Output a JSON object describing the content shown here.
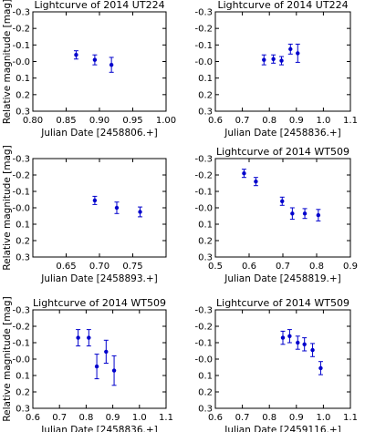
{
  "chart_data": [
    {
      "type": "scatter",
      "title": "Lightcurve of 2014 UT224",
      "xlabel": "Julian Date [2458806.+]",
      "ylabel": "Relative magnitude [mag]",
      "xlim": [
        0.8,
        1.0
      ],
      "ylim": [
        -0.3,
        0.3
      ],
      "y_inverted": true,
      "xticks": [
        0.8,
        0.85,
        0.9,
        0.95,
        1.0
      ],
      "xtick_labels": [
        "0.80",
        "0.85",
        "0.90",
        "0.95",
        "1.00"
      ],
      "yticks": [
        -0.3,
        -0.2,
        -0.1,
        0.0,
        0.1,
        0.2,
        0.3
      ],
      "ytick_labels": [
        "-0.3",
        "-0.2",
        "-0.1",
        "-0.0",
        "0.1",
        "0.2",
        "0.3"
      ],
      "color": "#0000cc",
      "points": [
        {
          "x": 0.865,
          "y": -0.04,
          "err": 0.025
        },
        {
          "x": 0.893,
          "y": -0.01,
          "err": 0.03
        },
        {
          "x": 0.918,
          "y": 0.02,
          "err": 0.045
        }
      ]
    },
    {
      "type": "scatter",
      "title": "Lightcurve of 2014 UT224",
      "xlabel": "Julian Date [2458836.+]",
      "ylabel": "",
      "xlim": [
        0.6,
        1.1
      ],
      "ylim": [
        -0.3,
        0.3
      ],
      "y_inverted": true,
      "xticks": [
        0.6,
        0.7,
        0.8,
        0.9,
        1.0,
        1.1
      ],
      "xtick_labels": [
        "0.6",
        "0.7",
        "0.8",
        "0.9",
        "1.0",
        "1.1"
      ],
      "yticks": [
        -0.3,
        -0.2,
        -0.1,
        0.0,
        0.1,
        0.2,
        0.3
      ],
      "ytick_labels": [
        "-0.3",
        "-0.2",
        "-0.1",
        "-0.0",
        "0.1",
        "0.2",
        "0.3"
      ],
      "color": "#0000cc",
      "points": [
        {
          "x": 0.78,
          "y": -0.01,
          "err": 0.03
        },
        {
          "x": 0.815,
          "y": -0.015,
          "err": 0.025
        },
        {
          "x": 0.845,
          "y": -0.005,
          "err": 0.025
        },
        {
          "x": 0.878,
          "y": -0.075,
          "err": 0.03
        },
        {
          "x": 0.905,
          "y": -0.05,
          "err": 0.055
        }
      ]
    },
    {
      "type": "scatter",
      "title": "",
      "xlabel": "Julian Date [2458893.+]",
      "ylabel": "Relative magnitude [mag]",
      "xlim": [
        0.6,
        0.8
      ],
      "ylim": [
        -0.3,
        0.3
      ],
      "y_inverted": true,
      "xticks": [
        0.65,
        0.7,
        0.75
      ],
      "xtick_labels": [
        "0.65",
        "0.70",
        "0.75"
      ],
      "yticks": [
        -0.3,
        -0.2,
        -0.1,
        0.0,
        0.1,
        0.2,
        0.3
      ],
      "ytick_labels": [
        "-0.3",
        "-0.2",
        "-0.1",
        "-0.0",
        "0.1",
        "0.2",
        "0.3"
      ],
      "color": "#0000cc",
      "points": [
        {
          "x": 0.693,
          "y": -0.045,
          "err": 0.025
        },
        {
          "x": 0.726,
          "y": 0.0,
          "err": 0.035
        },
        {
          "x": 0.761,
          "y": 0.025,
          "err": 0.03
        }
      ]
    },
    {
      "type": "scatter",
      "title": "Lightcurve of 2014 WT509",
      "xlabel": "Julian Date [2458819.+]",
      "ylabel": "",
      "xlim": [
        0.5,
        0.9
      ],
      "ylim": [
        -0.3,
        0.3
      ],
      "y_inverted": true,
      "xticks": [
        0.5,
        0.6,
        0.7,
        0.8,
        0.9
      ],
      "xtick_labels": [
        "0.5",
        "0.6",
        "0.7",
        "0.8",
        "0.9"
      ],
      "yticks": [
        -0.3,
        -0.2,
        -0.1,
        0.0,
        0.1,
        0.2,
        0.3
      ],
      "ytick_labels": [
        "-0.3",
        "-0.2",
        "-0.1",
        "-0.0",
        "0.1",
        "0.2",
        "0.3"
      ],
      "color": "#0000cc",
      "points": [
        {
          "x": 0.585,
          "y": -0.21,
          "err": 0.025
        },
        {
          "x": 0.62,
          "y": -0.16,
          "err": 0.025
        },
        {
          "x": 0.698,
          "y": -0.04,
          "err": 0.025
        },
        {
          "x": 0.728,
          "y": 0.035,
          "err": 0.035
        },
        {
          "x": 0.765,
          "y": 0.035,
          "err": 0.03
        },
        {
          "x": 0.805,
          "y": 0.045,
          "err": 0.035
        }
      ]
    },
    {
      "type": "scatter",
      "title": "Lightcurve of 2014 WT509",
      "xlabel": "Julian Date [2458836.+]",
      "ylabel": "Relative magnitude [mag]",
      "xlim": [
        0.6,
        1.1
      ],
      "ylim": [
        -0.3,
        0.3
      ],
      "y_inverted": true,
      "xticks": [
        0.6,
        0.7,
        0.8,
        0.9,
        1.0,
        1.1
      ],
      "xtick_labels": [
        "0.6",
        "0.7",
        "0.8",
        "0.9",
        "1.0",
        "1.1"
      ],
      "yticks": [
        -0.3,
        -0.2,
        -0.1,
        0.0,
        0.1,
        0.2,
        0.3
      ],
      "ytick_labels": [
        "-0.3",
        "-0.2",
        "-0.1",
        "-0.0",
        "0.1",
        "0.2",
        "0.3"
      ],
      "color": "#0000cc",
      "points": [
        {
          "x": 0.77,
          "y": -0.13,
          "err": 0.05
        },
        {
          "x": 0.81,
          "y": -0.13,
          "err": 0.05
        },
        {
          "x": 0.84,
          "y": 0.045,
          "err": 0.075
        },
        {
          "x": 0.875,
          "y": -0.045,
          "err": 0.07
        },
        {
          "x": 0.905,
          "y": 0.07,
          "err": 0.09
        }
      ]
    },
    {
      "type": "scatter",
      "title": "Lightcurve of 2014 WT509",
      "xlabel": "Julian Date [2459116.+]",
      "ylabel": "",
      "xlim": [
        0.6,
        1.1
      ],
      "ylim": [
        -0.3,
        0.3
      ],
      "y_inverted": true,
      "xticks": [
        0.6,
        0.7,
        0.8,
        0.9,
        1.0,
        1.1
      ],
      "xtick_labels": [
        "0.6",
        "0.7",
        "0.8",
        "0.9",
        "1.0",
        "1.1"
      ],
      "yticks": [
        -0.3,
        -0.2,
        -0.1,
        0.0,
        0.1,
        0.2,
        0.3
      ],
      "ytick_labels": [
        "-0.3",
        "-0.2",
        "-0.1",
        "-0.0",
        "0.1",
        "0.2",
        "0.3"
      ],
      "color": "#0000cc",
      "points": [
        {
          "x": 0.85,
          "y": -0.13,
          "err": 0.04
        },
        {
          "x": 0.875,
          "y": -0.14,
          "err": 0.04
        },
        {
          "x": 0.905,
          "y": -0.1,
          "err": 0.04
        },
        {
          "x": 0.93,
          "y": -0.09,
          "err": 0.04
        },
        {
          "x": 0.96,
          "y": -0.055,
          "err": 0.04
        },
        {
          "x": 0.99,
          "y": 0.055,
          "err": 0.04
        }
      ]
    }
  ]
}
